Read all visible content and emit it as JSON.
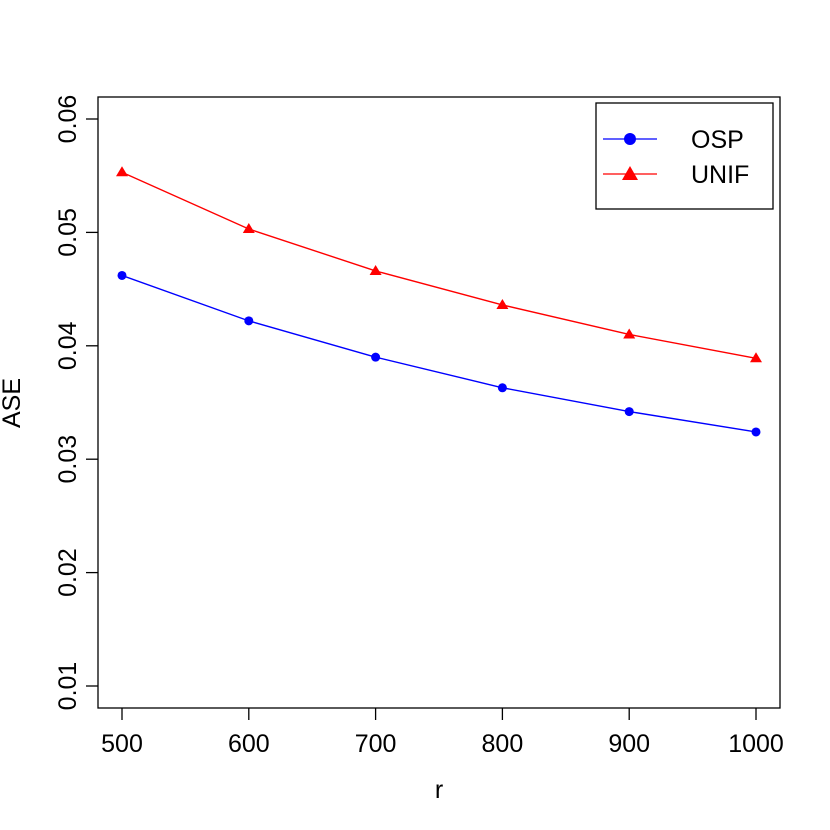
{
  "chart_data": {
    "type": "line",
    "title": "",
    "xlabel": "r",
    "ylabel": "ASE",
    "x": [
      500,
      600,
      700,
      800,
      900,
      1000
    ],
    "xticks": [
      "500",
      "600",
      "700",
      "800",
      "900",
      "1000"
    ],
    "yticks": [
      "0.01",
      "0.02",
      "0.03",
      "0.04",
      "0.05",
      "0.06"
    ],
    "xlim": [
      480,
      1020
    ],
    "ylim": [
      0.008,
      0.062
    ],
    "grid": false,
    "legend_position": "top-right",
    "series": [
      {
        "name": "OSP",
        "color": "#0000ff",
        "marker": "circle",
        "values": [
          0.0462,
          0.0422,
          0.039,
          0.0363,
          0.0342,
          0.0324
        ]
      },
      {
        "name": "UNIF",
        "color": "#ff0000",
        "marker": "triangle",
        "values": [
          0.0553,
          0.0503,
          0.0466,
          0.0436,
          0.041,
          0.0389
        ]
      }
    ]
  },
  "axes": {
    "xlabel": "r",
    "ylabel": "ASE"
  },
  "legend": {
    "items": [
      {
        "label": "OSP",
        "color": "#0000ff",
        "marker": "circle"
      },
      {
        "label": "UNIF",
        "color": "#ff0000",
        "marker": "triangle"
      }
    ]
  }
}
